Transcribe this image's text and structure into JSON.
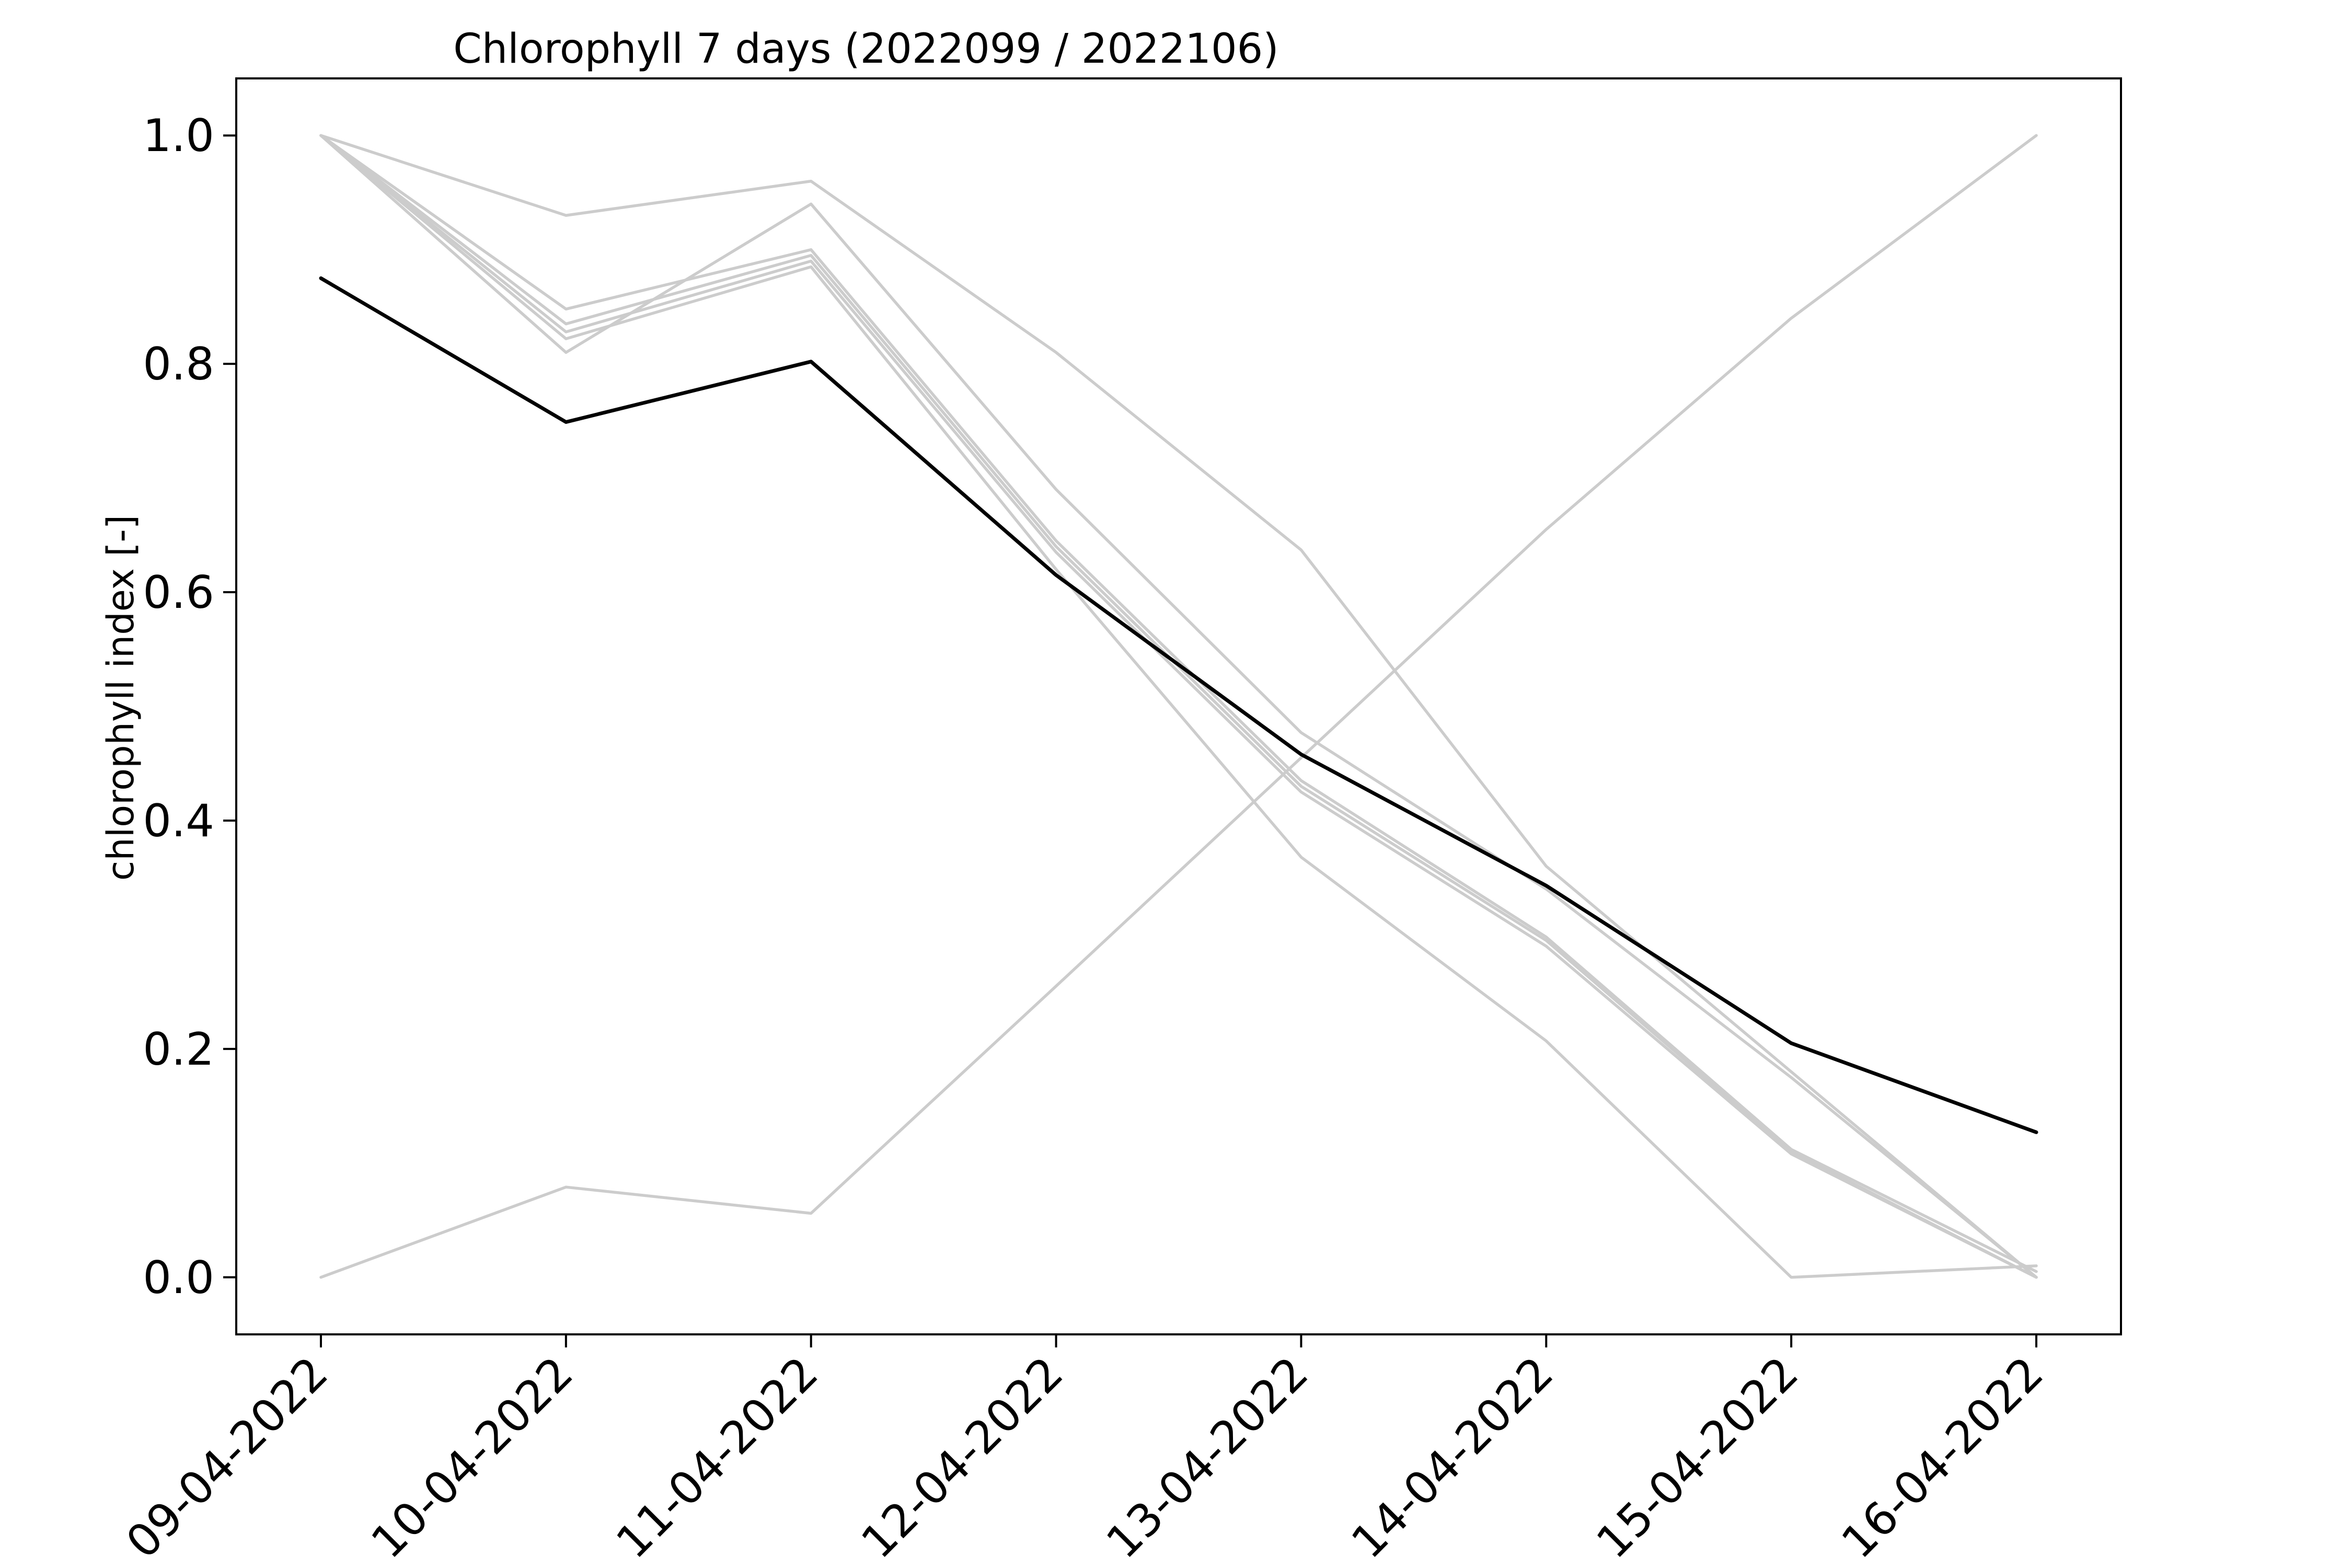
{
  "chart_data": {
    "type": "line",
    "title": "Chlorophyll 7 days (2022099 / 2022106)",
    "xlabel": "",
    "ylabel": "chlorophyll index [-]",
    "x": [
      "09-04-2022",
      "10-04-2022",
      "11-04-2022",
      "12-04-2022",
      "13-04-2022",
      "14-04-2022",
      "15-04-2022",
      "16-04-2022"
    ],
    "ylim": [
      -0.05,
      1.05
    ],
    "yticks": [
      "0.0",
      "0.2",
      "0.4",
      "0.6",
      "0.8",
      "1.0"
    ],
    "grid": false,
    "legend": "none",
    "colors": {
      "background_series": "#cccccc",
      "highlight_series": "#000000",
      "axes": "#000000"
    },
    "series": [
      {
        "values": [
          1.0,
          0.93,
          0.96,
          0.81,
          0.637,
          0.36,
          0.18,
          0.0
        ],
        "highlight": false
      },
      {
        "values": [
          1.0,
          0.81,
          0.94,
          0.69,
          0.477,
          0.34,
          0.175,
          0.0
        ],
        "highlight": false
      },
      {
        "values": [
          1.0,
          0.848,
          0.9,
          0.645,
          0.435,
          0.298,
          0.112,
          0.005
        ],
        "highlight": false
      },
      {
        "values": [
          1.0,
          0.835,
          0.895,
          0.64,
          0.43,
          0.295,
          0.11,
          0.0
        ],
        "highlight": false
      },
      {
        "values": [
          1.0,
          0.828,
          0.89,
          0.635,
          0.425,
          0.29,
          0.108,
          0.0
        ],
        "highlight": false
      },
      {
        "values": [
          1.0,
          0.822,
          0.885,
          0.62,
          0.368,
          0.207,
          0.0,
          0.01
        ],
        "highlight": false
      },
      {
        "values": [
          0.0,
          0.079,
          0.056,
          0.255,
          0.455,
          0.655,
          0.84,
          1.0
        ],
        "highlight": false
      },
      {
        "values": [
          0.875,
          0.749,
          0.802,
          0.615,
          0.458,
          0.343,
          0.205,
          0.127
        ],
        "highlight": true
      }
    ]
  }
}
